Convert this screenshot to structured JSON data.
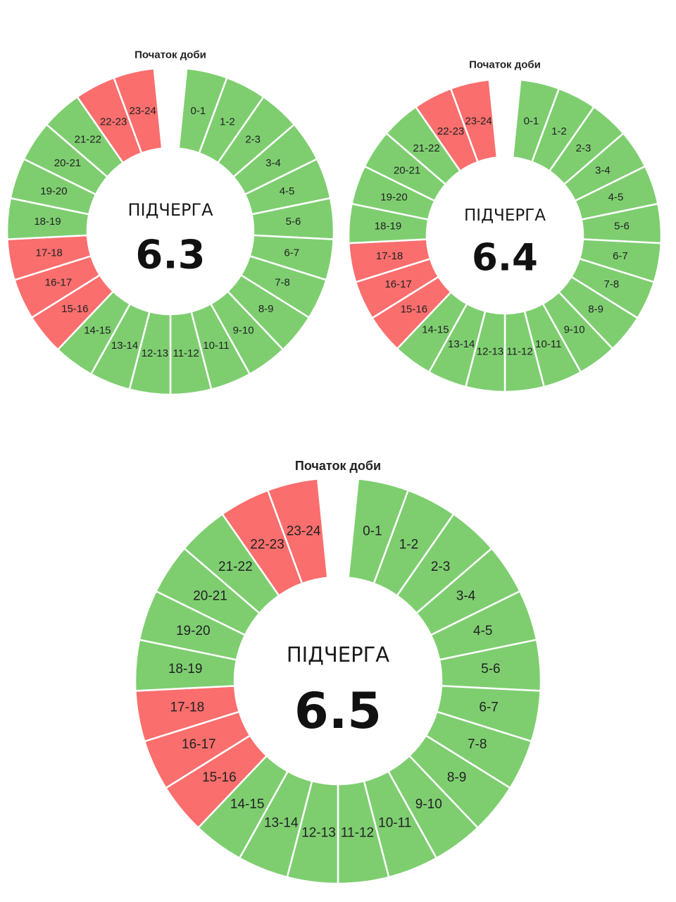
{
  "start_label": "Початок доби",
  "queue_word": "ПІДЧЕРГА",
  "colors": {
    "on": "#7ece70",
    "off": "#fa6e6e",
    "separator": "#ffffff"
  },
  "hour_labels": [
    "0-1",
    "1-2",
    "2-3",
    "3-4",
    "4-5",
    "5-6",
    "6-7",
    "7-8",
    "8-9",
    "9-10",
    "10-11",
    "11-12",
    "12-13",
    "13-14",
    "14-15",
    "15-16",
    "16-17",
    "17-18",
    "18-19",
    "19-20",
    "20-21",
    "21-22",
    "22-23",
    "23-24"
  ],
  "charts": [
    {
      "id": "6.3",
      "number": "6.3",
      "off_hours": [
        "15-16",
        "16-17",
        "17-18",
        "22-23",
        "23-24"
      ]
    },
    {
      "id": "6.4",
      "number": "6.4",
      "off_hours": [
        "15-16",
        "16-17",
        "17-18",
        "22-23",
        "23-24"
      ]
    },
    {
      "id": "6.5",
      "number": "6.5",
      "off_hours": [
        "15-16",
        "16-17",
        "17-18",
        "22-23",
        "23-24"
      ]
    }
  ]
}
